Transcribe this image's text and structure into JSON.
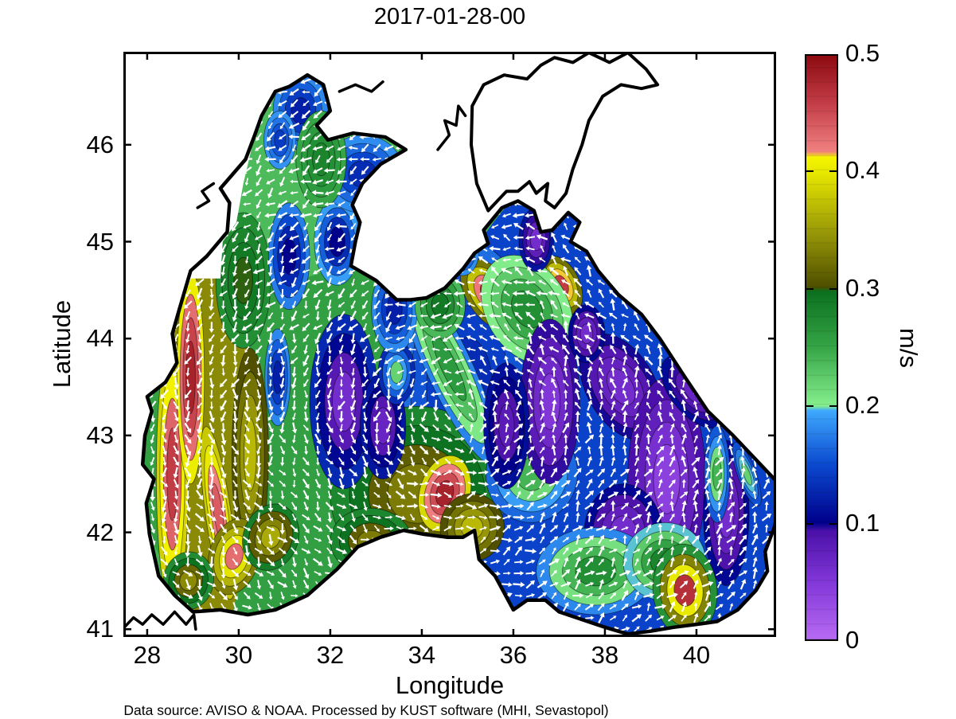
{
  "figure": {
    "title": "2017-01-28-00",
    "caption": "Data source: AVISO & NOAA. Processed by KUST software (MHI, Sevastopol)"
  },
  "axes": {
    "xlabel": "Longitude",
    "ylabel": "Latitude",
    "x_ticks": [
      28,
      30,
      32,
      34,
      36,
      38,
      40
    ],
    "y_ticks": [
      41,
      42,
      43,
      44,
      45,
      46
    ],
    "xlim": [
      27.48,
      41.74
    ],
    "ylim": [
      40.92,
      46.96
    ]
  },
  "colorbar": {
    "label": "m/s",
    "ticks": [
      0,
      0.1,
      0.2,
      0.3,
      0.4,
      0.5
    ],
    "min": 0,
    "max": 0.5,
    "colormap_stops": [
      [
        0.0,
        "#b76af2"
      ],
      [
        0.05,
        "#8136d8"
      ],
      [
        0.093,
        "#4a10a8"
      ],
      [
        0.097,
        "#1a0896"
      ],
      [
        0.1,
        "#00008b"
      ],
      [
        0.15,
        "#0b4ad0"
      ],
      [
        0.196,
        "#3fa9fd"
      ],
      [
        0.2,
        "#86ef8e"
      ],
      [
        0.25,
        "#35a546"
      ],
      [
        0.298,
        "#0b701e"
      ],
      [
        0.302,
        "#4f4f00"
      ],
      [
        0.35,
        "#9a9a08"
      ],
      [
        0.4,
        "#e8e800"
      ],
      [
        0.413,
        "#f5f500"
      ],
      [
        0.418,
        "#f08080"
      ],
      [
        0.46,
        "#c23c46"
      ],
      [
        0.5,
        "#8c0a10"
      ]
    ]
  },
  "chart_data": {
    "type": "heatmap",
    "title": "2017-01-28-00",
    "xlabel": "Longitude",
    "ylabel": "Latitude",
    "xlim": [
      27.48,
      41.74
    ],
    "ylim": [
      40.92,
      46.96
    ],
    "variable": "Black Sea surface current speed with current-direction vectors",
    "units": "m/s",
    "value_range": [
      0,
      0.5
    ],
    "colorbar_ticks": [
      0,
      0.1,
      0.2,
      0.3,
      0.4,
      0.5
    ],
    "flow": {
      "pattern": "cyclonic",
      "center": [
        34.7,
        43.2
      ],
      "arrow_color": "#ffffff"
    },
    "base_speed": 0.24,
    "speed_blobs": [
      [
        31.2,
        44.0,
        3.9,
        3.4,
        0,
        0.24,
        0.27
      ],
      [
        30.9,
        45.9,
        2.6,
        1.3,
        0,
        0.22,
        0.25
      ],
      [
        38.6,
        43.1,
        4.4,
        2.9,
        0,
        0.17,
        0.12
      ],
      [
        35.0,
        43.5,
        1.6,
        1.5,
        0,
        0.18,
        0.13
      ],
      [
        33.9,
        42.4,
        1.9,
        0.9,
        0,
        0.26,
        0.33
      ],
      [
        29.3,
        43.0,
        1.0,
        2.2,
        0,
        0.3,
        0.38
      ],
      [
        28.55,
        42.6,
        0.35,
        1.4,
        0,
        0.36,
        0.46
      ],
      [
        28.95,
        43.6,
        0.3,
        1.1,
        0,
        0.38,
        0.48
      ],
      [
        29.55,
        42.2,
        0.28,
        0.9,
        -8,
        0.36,
        0.44
      ],
      [
        30.25,
        42.8,
        0.4,
        1.1,
        0,
        0.28,
        0.37
      ],
      [
        29.9,
        41.75,
        0.55,
        0.4,
        15,
        0.3,
        0.43
      ],
      [
        30.7,
        41.95,
        0.6,
        0.35,
        20,
        0.26,
        0.36
      ],
      [
        28.9,
        41.5,
        0.55,
        0.3,
        10,
        0.25,
        0.34
      ],
      [
        30.1,
        44.6,
        0.6,
        0.7,
        0,
        0.26,
        0.3
      ],
      [
        31.35,
        46.35,
        0.6,
        0.4,
        0,
        0.2,
        0.12
      ],
      [
        30.9,
        46.05,
        0.35,
        0.3,
        0,
        0.2,
        0.14
      ],
      [
        31.1,
        44.85,
        0.45,
        0.55,
        0,
        0.2,
        0.1
      ],
      [
        30.85,
        43.6,
        0.28,
        0.5,
        0,
        0.2,
        0.12
      ],
      [
        32.15,
        45.0,
        0.5,
        0.45,
        0,
        0.22,
        0.1
      ],
      [
        32.7,
        45.7,
        0.9,
        0.4,
        -10,
        0.2,
        0.13
      ],
      [
        31.8,
        45.85,
        0.55,
        0.5,
        0,
        0.24,
        0.28
      ],
      [
        32.3,
        43.35,
        0.75,
        0.9,
        0,
        0.15,
        0.06
      ],
      [
        33.15,
        43.1,
        0.5,
        0.55,
        0,
        0.13,
        0.07
      ],
      [
        34.6,
        43.7,
        0.5,
        1.1,
        -25,
        0.15,
        0.26
      ],
      [
        33.45,
        43.65,
        0.4,
        0.33,
        0,
        0.1,
        0.22
      ],
      [
        33.4,
        44.3,
        0.5,
        0.45,
        0,
        0.2,
        0.12
      ],
      [
        34.4,
        44.35,
        0.55,
        0.35,
        0,
        0.22,
        0.29
      ],
      [
        35.5,
        44.45,
        0.5,
        0.42,
        -35,
        0.28,
        0.47
      ],
      [
        37.05,
        44.55,
        0.4,
        0.32,
        -25,
        0.28,
        0.46
      ],
      [
        36.3,
        44.3,
        0.9,
        0.6,
        -30,
        0.18,
        0.27
      ],
      [
        34.5,
        42.4,
        0.55,
        0.4,
        15,
        0.36,
        0.48
      ],
      [
        35.1,
        42.05,
        0.7,
        0.35,
        5,
        0.28,
        0.37
      ],
      [
        32.9,
        41.9,
        0.9,
        0.35,
        5,
        0.26,
        0.33
      ],
      [
        36.4,
        42.6,
        1.0,
        0.5,
        10,
        0.14,
        0.24
      ],
      [
        36.8,
        43.35,
        0.65,
        0.85,
        0,
        0.11,
        0.05
      ],
      [
        38.35,
        43.5,
        0.75,
        0.6,
        -30,
        0.11,
        0.06
      ],
      [
        39.35,
        42.55,
        0.85,
        1.05,
        0,
        0.11,
        0.04
      ],
      [
        38.4,
        42.0,
        0.85,
        0.5,
        0,
        0.12,
        0.06
      ],
      [
        40.65,
        42.2,
        0.5,
        0.75,
        0,
        0.12,
        0.06
      ],
      [
        39.95,
        43.45,
        0.5,
        0.45,
        -40,
        0.12,
        0.07
      ],
      [
        37.6,
        44.05,
        0.4,
        0.3,
        0,
        0.12,
        0.06
      ],
      [
        36.5,
        45.02,
        0.38,
        0.33,
        0,
        0.13,
        0.06
      ],
      [
        37.8,
        41.6,
        1.3,
        0.45,
        0,
        0.15,
        0.27
      ],
      [
        39.3,
        41.7,
        0.9,
        0.4,
        -10,
        0.17,
        0.28
      ],
      [
        40.45,
        42.6,
        0.28,
        0.5,
        0,
        0.13,
        0.24
      ],
      [
        41.1,
        42.6,
        0.2,
        0.35,
        -20,
        0.13,
        0.22
      ],
      [
        41.35,
        43.35,
        0.35,
        0.45,
        -30,
        0.13,
        0.2
      ],
      [
        35.85,
        43.1,
        0.5,
        0.65,
        0,
        0.12,
        0.08
      ],
      [
        34.9,
        44.9,
        0.35,
        0.25,
        0,
        0.2,
        0.13
      ],
      [
        39.75,
        41.4,
        0.7,
        0.48,
        -5,
        0.2,
        0.47
      ]
    ],
    "coastlines": {
      "black_sea": [
        [
          29.0,
          41.18
        ],
        [
          28.6,
          41.35
        ],
        [
          28.25,
          41.55
        ],
        [
          28.05,
          41.98
        ],
        [
          27.98,
          42.3
        ],
        [
          28.15,
          42.55
        ],
        [
          27.9,
          42.7
        ],
        [
          27.95,
          43.0
        ],
        [
          28.1,
          43.25
        ],
        [
          28.0,
          43.4
        ],
        [
          28.4,
          43.55
        ],
        [
          28.65,
          43.75
        ],
        [
          28.55,
          44.05
        ],
        [
          28.7,
          44.3
        ],
        [
          28.95,
          44.7
        ],
        [
          29.3,
          44.85
        ],
        [
          29.75,
          45.1
        ],
        [
          29.8,
          45.4
        ],
        [
          29.6,
          45.55
        ],
        [
          30.15,
          45.85
        ],
        [
          30.35,
          46.1
        ],
        [
          30.5,
          46.3
        ],
        [
          30.8,
          46.55
        ],
        [
          31.1,
          46.6
        ],
        [
          31.5,
          46.72
        ],
        [
          31.85,
          46.62
        ],
        [
          32.0,
          46.35
        ],
        [
          31.7,
          46.2
        ],
        [
          31.95,
          46.05
        ],
        [
          32.5,
          46.12
        ],
        [
          33.2,
          46.08
        ],
        [
          33.65,
          45.95
        ],
        [
          33.1,
          45.8
        ],
        [
          32.7,
          45.6
        ],
        [
          32.48,
          45.38
        ],
        [
          32.65,
          45.2
        ],
        [
          32.55,
          45.0
        ],
        [
          32.45,
          44.75
        ],
        [
          33.0,
          44.6
        ],
        [
          33.45,
          44.4
        ],
        [
          33.75,
          44.4
        ],
        [
          34.1,
          44.42
        ],
        [
          34.5,
          44.52
        ],
        [
          34.9,
          44.72
        ],
        [
          35.15,
          44.88
        ],
        [
          35.45,
          44.98
        ],
        [
          35.35,
          45.12
        ],
        [
          35.75,
          45.35
        ],
        [
          36.1,
          45.42
        ],
        [
          36.45,
          45.32
        ],
        [
          36.6,
          45.1
        ],
        [
          36.85,
          45.12
        ],
        [
          37.2,
          45.3
        ],
        [
          37.45,
          45.2
        ],
        [
          37.25,
          45.0
        ],
        [
          37.6,
          44.9
        ],
        [
          37.85,
          44.7
        ],
        [
          38.3,
          44.45
        ],
        [
          38.8,
          44.25
        ],
        [
          39.2,
          44.0
        ],
        [
          39.75,
          43.6
        ],
        [
          40.25,
          43.25
        ],
        [
          40.8,
          43.0
        ],
        [
          41.3,
          42.75
        ],
        [
          41.9,
          42.45
        ],
        [
          41.7,
          42.05
        ],
        [
          41.5,
          41.8
        ],
        [
          41.55,
          41.6
        ],
        [
          41.3,
          41.4
        ],
        [
          40.9,
          41.2
        ],
        [
          40.45,
          41.08
        ],
        [
          40.0,
          41.05
        ],
        [
          39.5,
          41.02
        ],
        [
          39.0,
          40.98
        ],
        [
          38.5,
          40.95
        ],
        [
          38.0,
          41.02
        ],
        [
          37.5,
          41.1
        ],
        [
          37.0,
          41.18
        ],
        [
          36.7,
          41.3
        ],
        [
          36.3,
          41.3
        ],
        [
          36.0,
          41.2
        ],
        [
          35.6,
          41.55
        ],
        [
          35.25,
          41.72
        ],
        [
          35.15,
          42.02
        ],
        [
          34.9,
          41.95
        ],
        [
          34.55,
          41.95
        ],
        [
          34.05,
          41.98
        ],
        [
          33.6,
          42.02
        ],
        [
          33.1,
          41.95
        ],
        [
          32.6,
          41.85
        ],
        [
          32.15,
          41.62
        ],
        [
          31.5,
          41.35
        ],
        [
          30.8,
          41.2
        ],
        [
          30.2,
          41.15
        ],
        [
          29.6,
          41.2
        ],
        [
          29.0,
          41.18
        ]
      ],
      "azov_sea": [
        [
          35.45,
          45.32
        ],
        [
          35.2,
          45.6
        ],
        [
          35.08,
          46.0
        ],
        [
          35.1,
          46.4
        ],
        [
          35.35,
          46.62
        ],
        [
          35.8,
          46.72
        ],
        [
          36.3,
          46.68
        ],
        [
          36.6,
          46.82
        ],
        [
          36.9,
          46.9
        ],
        [
          37.3,
          46.85
        ],
        [
          37.65,
          46.95
        ],
        [
          38.1,
          46.85
        ],
        [
          38.5,
          46.95
        ],
        [
          38.9,
          46.78
        ],
        [
          39.15,
          46.62
        ],
        [
          38.8,
          46.58
        ],
        [
          38.35,
          46.62
        ],
        [
          37.95,
          46.5
        ],
        [
          37.65,
          46.25
        ],
        [
          37.5,
          46.0
        ],
        [
          37.3,
          45.75
        ],
        [
          37.15,
          45.5
        ],
        [
          36.9,
          45.35
        ],
        [
          36.7,
          45.42
        ],
        [
          36.75,
          45.6
        ],
        [
          36.5,
          45.5
        ],
        [
          36.35,
          45.62
        ],
        [
          36.1,
          45.52
        ],
        [
          35.85,
          45.52
        ],
        [
          35.65,
          45.42
        ],
        [
          35.45,
          45.32
        ]
      ],
      "extra": [
        [
          [
            27.5,
            41.02
          ],
          [
            27.7,
            41.12
          ],
          [
            27.9,
            41.05
          ],
          [
            28.1,
            41.15
          ],
          [
            28.35,
            41.05
          ],
          [
            28.6,
            41.18
          ],
          [
            28.85,
            41.05
          ],
          [
            29.02,
            41.15
          ],
          [
            29.06,
            41.0
          ]
        ],
        [
          [
            34.35,
            45.95
          ],
          [
            34.6,
            46.1
          ],
          [
            34.5,
            46.25
          ],
          [
            34.75,
            46.2
          ],
          [
            34.8,
            46.4
          ],
          [
            34.95,
            46.3
          ]
        ],
        [
          [
            29.1,
            45.35
          ],
          [
            29.35,
            45.42
          ],
          [
            29.2,
            45.52
          ],
          [
            29.45,
            45.6
          ]
        ],
        [
          [
            32.2,
            46.55
          ],
          [
            32.55,
            46.62
          ],
          [
            32.9,
            46.55
          ],
          [
            33.15,
            46.65
          ]
        ]
      ]
    },
    "no_data_patches": [
      [
        [
          29.85,
          46.6
        ],
        [
          30.45,
          46.6
        ],
        [
          30.35,
          46.1
        ],
        [
          30.1,
          45.6
        ],
        [
          29.95,
          45.2
        ],
        [
          29.65,
          45.0
        ],
        [
          29.6,
          44.62
        ],
        [
          28.95,
          44.62
        ],
        [
          28.72,
          44.35
        ],
        [
          28.45,
          44.28
        ],
        [
          28.42,
          44.95
        ],
        [
          28.62,
          45.6
        ],
        [
          29.0,
          46.25
        ],
        [
          29.4,
          46.6
        ]
      ]
    ]
  }
}
